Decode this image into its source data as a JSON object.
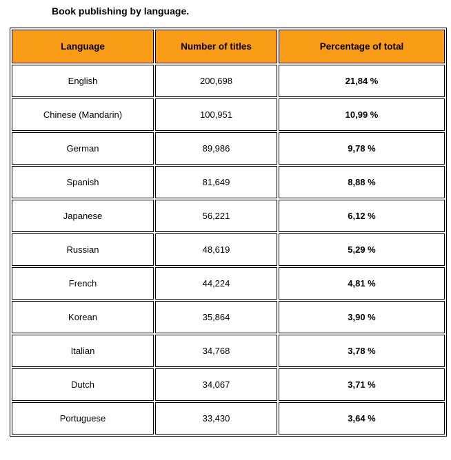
{
  "title": "Book publishing by language.",
  "table": {
    "headers": [
      "Language",
      "Number of titles",
      "Percentage of total"
    ],
    "rows": [
      {
        "language": "English",
        "titles_display": "200,698",
        "percent_display": "21,84 %"
      },
      {
        "language": "Chinese (Mandarin)",
        "titles_display": "100,951",
        "percent_display": "10,99 %"
      },
      {
        "language": "German",
        "titles_display": "89,986",
        "percent_display": "9,78 %"
      },
      {
        "language": "Spanish",
        "titles_display": "81,649",
        "percent_display": "8,88 %"
      },
      {
        "language": "Japanese",
        "titles_display": "56,221",
        "percent_display": "6,12 %"
      },
      {
        "language": "Russian",
        "titles_display": "48,619",
        "percent_display": "5,29 %"
      },
      {
        "language": "French",
        "titles_display": "44,224",
        "percent_display": "4,81 %"
      },
      {
        "language": "Korean",
        "titles_display": "35,864",
        "percent_display": "3,90 %"
      },
      {
        "language": "Italian",
        "titles_display": "34,768",
        "percent_display": "3,78 %"
      },
      {
        "language": "Dutch",
        "titles_display": "34,067",
        "percent_display": "3,71 %"
      },
      {
        "language": "Portuguese",
        "titles_display": "33,430",
        "percent_display": "3,64 %"
      }
    ]
  },
  "colors": {
    "header_bg": "#FA9D16",
    "border": "#000000",
    "text": "#000000",
    "row_bg": "#FFFFFF"
  },
  "chart_data": {
    "type": "table",
    "title": "Book publishing by language.",
    "columns": [
      "Language",
      "Number of titles",
      "Percentage of total"
    ],
    "rows": [
      [
        "English",
        200698,
        21.84
      ],
      [
        "Chinese (Mandarin)",
        100951,
        10.99
      ],
      [
        "German",
        89986,
        9.78
      ],
      [
        "Spanish",
        81649,
        8.88
      ],
      [
        "Japanese",
        56221,
        6.12
      ],
      [
        "Russian",
        48619,
        5.29
      ],
      [
        "French",
        44224,
        4.81
      ],
      [
        "Korean",
        35864,
        3.9
      ],
      [
        "Italian",
        34768,
        3.78
      ],
      [
        "Dutch",
        34067,
        3.71
      ],
      [
        "Portuguese",
        33430,
        3.64
      ]
    ],
    "notes": "Percentages shown with comma decimal separator and bold weight; header row has orange background."
  }
}
